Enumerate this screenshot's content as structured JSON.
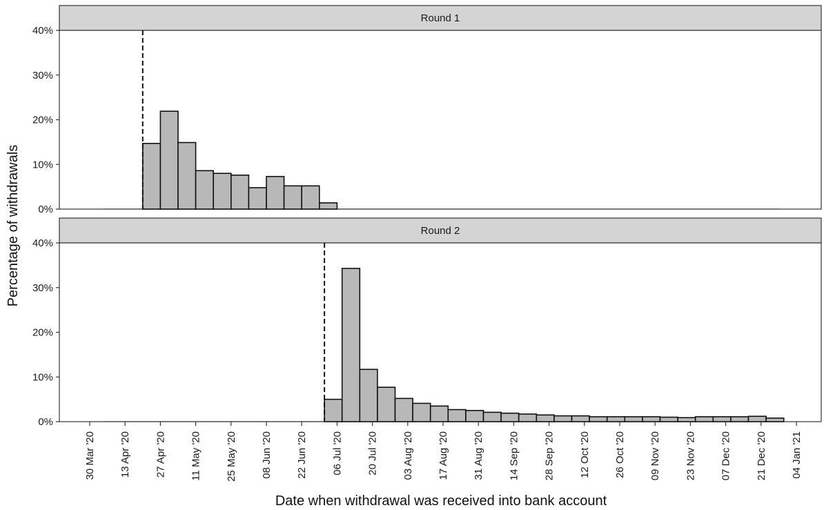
{
  "chart_data": {
    "type": "bar",
    "xlabel": "Date when withdrawal was received into bank account",
    "ylabel": "Percentage of withdrawals",
    "ylim": [
      0,
      40
    ],
    "yticks": [
      0,
      10,
      20,
      30,
      40
    ],
    "ytick_labels": [
      "0%",
      "10%",
      "20%",
      "30%",
      "40%"
    ],
    "x_tick_dates": [
      "2020-03-30",
      "2020-04-13",
      "2020-04-27",
      "2020-05-11",
      "2020-05-25",
      "2020-06-08",
      "2020-06-22",
      "2020-07-06",
      "2020-07-20",
      "2020-08-03",
      "2020-08-17",
      "2020-08-31",
      "2020-09-14",
      "2020-09-28",
      "2020-10-12",
      "2020-10-26",
      "2020-11-09",
      "2020-11-23",
      "2020-12-07",
      "2020-12-21",
      "2021-01-04"
    ],
    "x_tick_labels": [
      "30 Mar '20",
      "13 Apr '20",
      "27 Apr '20",
      "11 May '20",
      "25 May '20",
      "08 Jun '20",
      "22 Jun '20",
      "06 Jul '20",
      "20 Jul '20",
      "03 Aug '20",
      "17 Aug '20",
      "31 Aug '20",
      "14 Sep '20",
      "28 Sep '20",
      "12 Oct '20",
      "26 Oct '20",
      "09 Nov '20",
      "23 Nov '20",
      "07 Dec '20",
      "21 Dec '20",
      "04 Jan '21"
    ],
    "bin_width_days": 7,
    "grid": false,
    "panels": [
      {
        "name": "Round 1",
        "vline_date": "2020-04-20",
        "bins": [
          {
            "start": "2020-04-20",
            "value": 14.7
          },
          {
            "start": "2020-04-27",
            "value": 21.9
          },
          {
            "start": "2020-05-04",
            "value": 14.9
          },
          {
            "start": "2020-05-11",
            "value": 8.6
          },
          {
            "start": "2020-05-18",
            "value": 8.0
          },
          {
            "start": "2020-05-25",
            "value": 7.6
          },
          {
            "start": "2020-06-01",
            "value": 4.8
          },
          {
            "start": "2020-06-08",
            "value": 7.3
          },
          {
            "start": "2020-06-15",
            "value": 5.2
          },
          {
            "start": "2020-06-22",
            "value": 5.2
          },
          {
            "start": "2020-06-29",
            "value": 1.4
          }
        ]
      },
      {
        "name": "Round 2",
        "vline_date": "2020-07-01",
        "bins": [
          {
            "start": "2020-07-01",
            "value": 5.0
          },
          {
            "start": "2020-07-08",
            "value": 34.3
          },
          {
            "start": "2020-07-15",
            "value": 11.7
          },
          {
            "start": "2020-07-22",
            "value": 7.7
          },
          {
            "start": "2020-07-29",
            "value": 5.2
          },
          {
            "start": "2020-08-05",
            "value": 4.1
          },
          {
            "start": "2020-08-12",
            "value": 3.5
          },
          {
            "start": "2020-08-19",
            "value": 2.7
          },
          {
            "start": "2020-08-26",
            "value": 2.5
          },
          {
            "start": "2020-09-02",
            "value": 2.1
          },
          {
            "start": "2020-09-09",
            "value": 1.9
          },
          {
            "start": "2020-09-16",
            "value": 1.7
          },
          {
            "start": "2020-09-23",
            "value": 1.5
          },
          {
            "start": "2020-09-30",
            "value": 1.3
          },
          {
            "start": "2020-10-07",
            "value": 1.3
          },
          {
            "start": "2020-10-14",
            "value": 1.1
          },
          {
            "start": "2020-10-21",
            "value": 1.1
          },
          {
            "start": "2020-10-28",
            "value": 1.1
          },
          {
            "start": "2020-11-04",
            "value": 1.1
          },
          {
            "start": "2020-11-11",
            "value": 1.0
          },
          {
            "start": "2020-11-18",
            "value": 0.9
          },
          {
            "start": "2020-11-25",
            "value": 1.1
          },
          {
            "start": "2020-12-02",
            "value": 1.1
          },
          {
            "start": "2020-12-09",
            "value": 1.1
          },
          {
            "start": "2020-12-16",
            "value": 1.2
          },
          {
            "start": "2020-12-23",
            "value": 0.8
          }
        ]
      }
    ]
  },
  "colors": {
    "bar_fill": "#b8b8b8",
    "bar_stroke": "#111111",
    "strip_fill": "#d4d4d4",
    "frame": "#333333",
    "axis_text": "#1a1a1a"
  }
}
